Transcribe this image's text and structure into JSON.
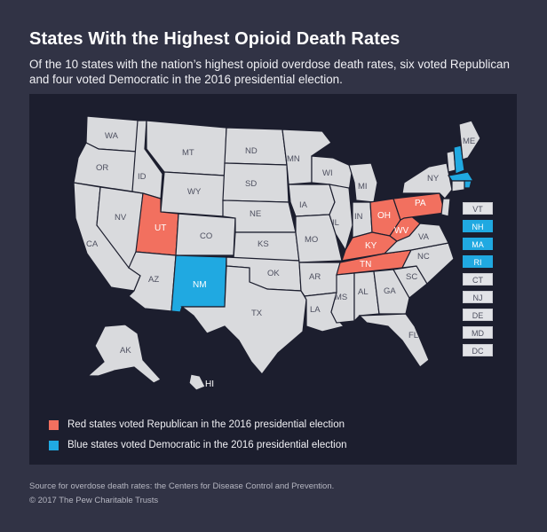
{
  "title": "States With the Highest Opioid Death Rates",
  "subtitle": "Of the 10 states with the nation’s highest opioid overdose death rates, six voted Republican and four voted Democratic in the 2016 presidential election.",
  "colors": {
    "republican": "#f2705f",
    "democratic": "#20a9e1",
    "neutral": "#d9dadd",
    "panel": "#1c1e2e",
    "background": "#313345"
  },
  "map": {
    "state_labels": {
      "WA": "WA",
      "OR": "OR",
      "CA": "CA",
      "NV": "NV",
      "ID": "ID",
      "MT": "MT",
      "WY": "WY",
      "UT": "UT",
      "CO": "CO",
      "AZ": "AZ",
      "NM": "NM",
      "ND": "ND",
      "SD": "SD",
      "NE": "NE",
      "KS": "KS",
      "OK": "OK",
      "TX": "TX",
      "MN": "MN",
      "IA": "IA",
      "MO": "MO",
      "AR": "AR",
      "LA": "LA",
      "WI": "WI",
      "IL": "IL",
      "MS": "MS",
      "MI": "MI",
      "IN": "IN",
      "OH": "OH",
      "KY": "KY",
      "TN": "TN",
      "AL": "AL",
      "GA": "GA",
      "FL": "FL",
      "SC": "SC",
      "NC": "NC",
      "VA": "VA",
      "WV": "WV",
      "PA": "PA",
      "NY": "NY",
      "ME": "ME",
      "AK": "AK",
      "HI": "HI"
    },
    "republican_highest": [
      "UT",
      "OH",
      "KY",
      "TN",
      "WV",
      "PA"
    ],
    "democratic_highest": [
      "NM",
      "NH",
      "MA",
      "RI"
    ],
    "small_state_boxes": [
      {
        "label": "VT",
        "status": "none"
      },
      {
        "label": "NH",
        "status": "dem"
      },
      {
        "label": "MA",
        "status": "dem"
      },
      {
        "label": "RI",
        "status": "dem"
      },
      {
        "label": "CT",
        "status": "none"
      },
      {
        "label": "NJ",
        "status": "none"
      },
      {
        "label": "DE",
        "status": "none"
      },
      {
        "label": "MD",
        "status": "none"
      },
      {
        "label": "DC",
        "status": "none"
      }
    ]
  },
  "legend": {
    "red": "Red states voted Republican in the 2016 presidential election",
    "blue": "Blue states voted Democratic in the 2016 presidential election"
  },
  "footer": {
    "source": "Source for overdose death rates: the Centers for Disease Control and Prevention.",
    "copyright": "© 2017 The Pew Charitable Trusts"
  }
}
